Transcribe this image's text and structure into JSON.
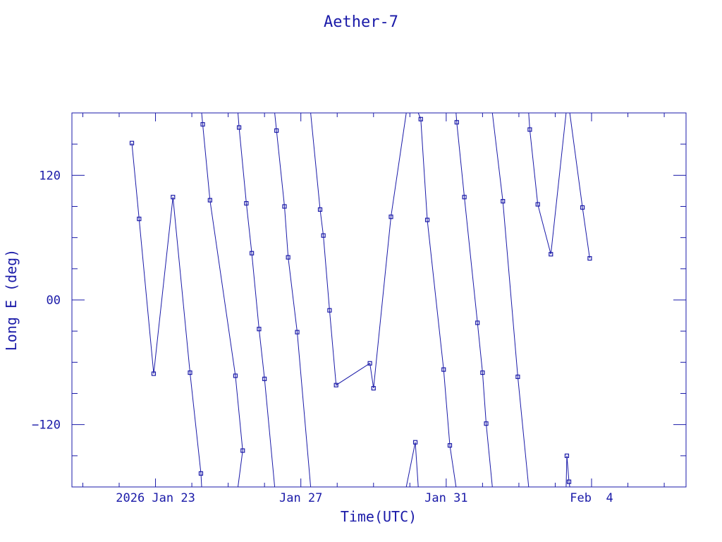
{
  "chart_data": {
    "type": "line",
    "title": "Aether-7",
    "xlabel": "Time(UTC)",
    "ylabel": "Long E (deg)",
    "xlim": [
      -2.3,
      14.6
    ],
    "ylim": [
      -180,
      180
    ],
    "x_unit": "days from 2026 Jan 23 00:00 UTC",
    "x_ticks": [
      {
        "value": 0,
        "label": "2026 Jan 23"
      },
      {
        "value": 4,
        "label": "Jan 27"
      },
      {
        "value": 8,
        "label": "Jan 31"
      },
      {
        "value": 12,
        "label": "Feb  4"
      }
    ],
    "y_ticks": [
      {
        "value": 120,
        "label": "120"
      },
      {
        "value": 0,
        "label": "00"
      },
      {
        "value": -120,
        "label": "−120"
      }
    ],
    "grid": false,
    "color": "#1a1aa8",
    "series": [
      {
        "segments": [
          [
            [
              -0.65,
              151
            ],
            [
              -0.45,
              78
            ],
            [
              -0.05,
              -71
            ],
            [
              0.48,
              99
            ],
            [
              0.95,
              -70
            ],
            [
              1.25,
              -167
            ],
            [
              1.27,
              -180
            ]
          ],
          [
            [
              1.27,
              180
            ],
            [
              1.3,
              169
            ],
            [
              1.5,
              96
            ],
            [
              2.2,
              -73
            ],
            [
              2.4,
              -145
            ],
            [
              2.27,
              -180
            ]
          ],
          [
            [
              2.27,
              180
            ],
            [
              2.3,
              166
            ],
            [
              2.5,
              93
            ],
            [
              2.65,
              45
            ],
            [
              2.85,
              -28
            ],
            [
              3.0,
              -76
            ],
            [
              3.28,
              -180
            ]
          ],
          [
            [
              3.28,
              180
            ],
            [
              3.33,
              163
            ],
            [
              3.55,
              90
            ],
            [
              3.65,
              41
            ],
            [
              3.9,
              -31
            ],
            [
              4.27,
              -180
            ]
          ],
          [
            [
              4.27,
              180
            ],
            [
              4.53,
              87
            ],
            [
              4.62,
              62
            ],
            [
              4.79,
              -10
            ],
            [
              4.97,
              -82
            ],
            [
              5.9,
              -61
            ],
            [
              6.0,
              -85
            ],
            [
              6.48,
              80
            ],
            [
              6.9,
              180
            ]
          ],
          [
            [
              6.9,
              -180
            ],
            [
              7.15,
              -137
            ],
            [
              7.23,
              -180
            ]
          ],
          [
            [
              7.23,
              180
            ],
            [
              7.3,
              174
            ],
            [
              7.48,
              77
            ],
            [
              7.93,
              -67
            ],
            [
              8.1,
              -140
            ],
            [
              8.27,
              -180
            ]
          ],
          [
            [
              8.27,
              180
            ],
            [
              8.29,
              171
            ],
            [
              8.5,
              99
            ],
            [
              8.86,
              -22
            ],
            [
              9.0,
              -70
            ],
            [
              9.1,
              -119
            ],
            [
              9.27,
              -180
            ]
          ],
          [
            [
              9.27,
              180
            ],
            [
              9.56,
              95
            ],
            [
              9.97,
              -74
            ],
            [
              10.27,
              -180
            ]
          ],
          [
            [
              10.27,
              180
            ],
            [
              10.3,
              164
            ],
            [
              10.52,
              92
            ],
            [
              10.88,
              44
            ],
            [
              11.3,
              180
            ]
          ],
          [
            [
              11.3,
              -180
            ],
            [
              11.32,
              -150
            ],
            [
              11.38,
              -175
            ],
            [
              11.4,
              -180
            ]
          ],
          [
            [
              11.4,
              180
            ],
            [
              11.75,
              89
            ],
            [
              11.95,
              40
            ]
          ]
        ]
      }
    ]
  }
}
